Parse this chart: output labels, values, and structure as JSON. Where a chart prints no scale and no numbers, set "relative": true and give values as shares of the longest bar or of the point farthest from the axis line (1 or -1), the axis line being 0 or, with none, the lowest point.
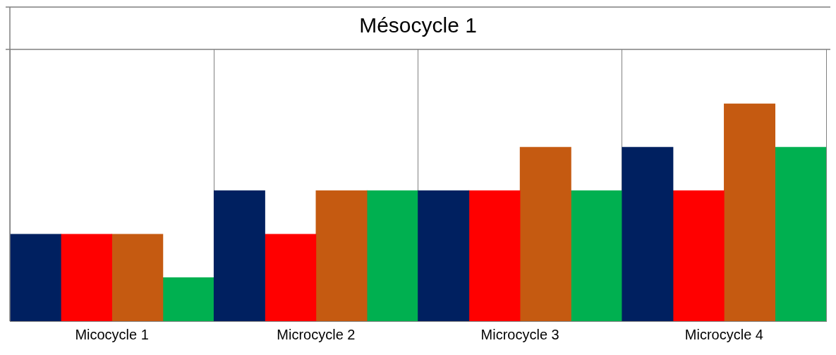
{
  "chart_data": {
    "type": "bar",
    "title": "Mésocycle 1",
    "relative": true,
    "grid": "x",
    "legend": false,
    "categories": [
      "Micocycle 1",
      "Microcycle 2",
      "Microcycle 3",
      "Microcycle 4"
    ],
    "series": [
      {
        "color": "#002060",
        "values": [
          0.4,
          0.6,
          0.6,
          0.8
        ]
      },
      {
        "color": "#ff0000",
        "values": [
          0.4,
          0.4,
          0.6,
          0.6
        ]
      },
      {
        "color": "#c55a11",
        "values": [
          0.4,
          0.6,
          0.8,
          1
        ]
      },
      {
        "color": "#00b050",
        "values": [
          0.2,
          0.6,
          0.6,
          0.8
        ]
      }
    ]
  }
}
